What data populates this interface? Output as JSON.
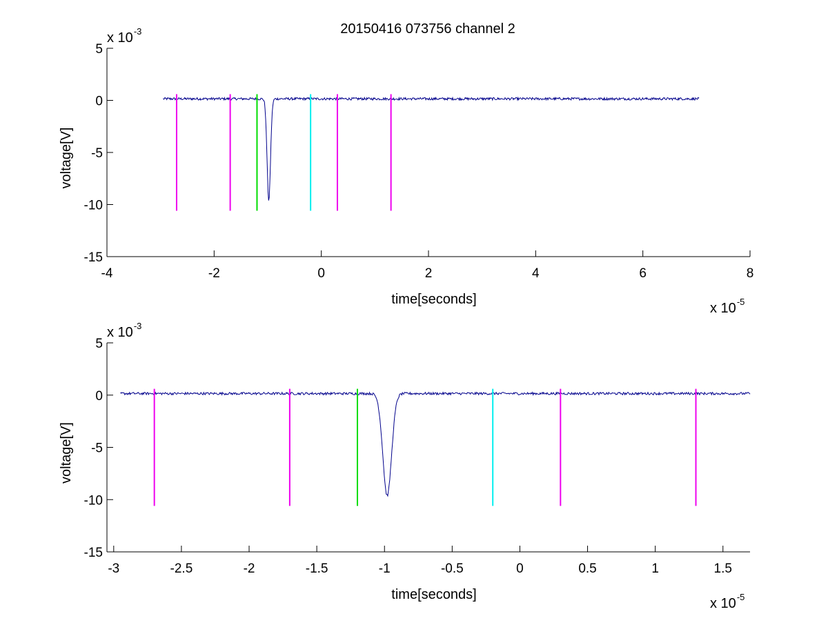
{
  "figure": {
    "title": "20150416 073756 channel 2",
    "colors": {
      "signal": "#00008b",
      "marker_magenta": "#ee00ee",
      "marker_green": "#00dd00",
      "marker_cyan": "#00eeee"
    }
  },
  "chart_data": [
    {
      "type": "line",
      "title": "20150416 073756 channel 2",
      "xlabel": "time[seconds]",
      "ylabel": "voltage[V]",
      "x_multiplier": "x 10",
      "x_exponent": "-5",
      "y_multiplier": "x 10",
      "y_exponent": "-3",
      "xlim": [
        -4,
        8
      ],
      "ylim": [
        -15,
        5
      ],
      "xticks": [
        -4,
        -2,
        0,
        2,
        4,
        6,
        8
      ],
      "xtick_labels": [
        "-4",
        "-2",
        "0",
        "2",
        "4",
        "6",
        "8"
      ],
      "yticks": [
        -15,
        -10,
        -5,
        0,
        5
      ],
      "ytick_labels": [
        "-15",
        "-10",
        "-5",
        "0",
        "5"
      ],
      "grid": false,
      "series": [
        {
          "color": "#00008b",
          "x_range": [
            -2.95,
            7.05
          ],
          "baseline": 0.15,
          "noise": 0.12,
          "spike": {
            "x": -0.98,
            "min": -9.6,
            "width": 0.05
          }
        }
      ],
      "markers": [
        {
          "x": -2.7,
          "y_top": 0.6,
          "y_bottom": -10.6,
          "color": "#ee00ee"
        },
        {
          "x": -1.7,
          "y_top": 0.6,
          "y_bottom": -10.6,
          "color": "#ee00ee"
        },
        {
          "x": -1.2,
          "y_top": 0.6,
          "y_bottom": -10.6,
          "color": "#00dd00"
        },
        {
          "x": -0.2,
          "y_top": 0.6,
          "y_bottom": -10.6,
          "color": "#00eeee"
        },
        {
          "x": 0.3,
          "y_top": 0.6,
          "y_bottom": -10.6,
          "color": "#ee00ee"
        },
        {
          "x": 1.3,
          "y_top": 0.6,
          "y_bottom": -10.6,
          "color": "#ee00ee"
        }
      ]
    },
    {
      "type": "line",
      "title": "",
      "xlabel": "time[seconds]",
      "ylabel": "voltage[V]",
      "x_multiplier": "x 10",
      "x_exponent": "-5",
      "y_multiplier": "x 10",
      "y_exponent": "-3",
      "xlim": [
        -3.05,
        1.7
      ],
      "ylim": [
        -15,
        5
      ],
      "xticks": [
        -3,
        -2.5,
        -2,
        -1.5,
        -1,
        -0.5,
        0,
        0.5,
        1,
        1.5
      ],
      "xtick_labels": [
        "-3",
        "-2.5",
        "-2",
        "-1.5",
        "-1",
        "-0.5",
        "0",
        "0.5",
        "1",
        "1.5"
      ],
      "yticks": [
        -15,
        -10,
        -5,
        0,
        5
      ],
      "ytick_labels": [
        "-15",
        "-10",
        "-5",
        "0",
        "5"
      ],
      "grid": false,
      "series": [
        {
          "color": "#00008b",
          "x_range": [
            -2.95,
            1.7
          ],
          "baseline": 0.15,
          "noise": 0.12,
          "spike": {
            "x": -0.98,
            "min": -9.6,
            "width": 0.05
          }
        }
      ],
      "markers": [
        {
          "x": -2.7,
          "y_top": 0.6,
          "y_bottom": -10.6,
          "color": "#ee00ee"
        },
        {
          "x": -1.7,
          "y_top": 0.6,
          "y_bottom": -10.6,
          "color": "#ee00ee"
        },
        {
          "x": -1.2,
          "y_top": 0.6,
          "y_bottom": -10.6,
          "color": "#00dd00"
        },
        {
          "x": -0.2,
          "y_top": 0.6,
          "y_bottom": -10.6,
          "color": "#00eeee"
        },
        {
          "x": 0.3,
          "y_top": 0.6,
          "y_bottom": -10.6,
          "color": "#ee00ee"
        },
        {
          "x": 1.3,
          "y_top": 0.6,
          "y_bottom": -10.6,
          "color": "#ee00ee"
        }
      ]
    }
  ]
}
